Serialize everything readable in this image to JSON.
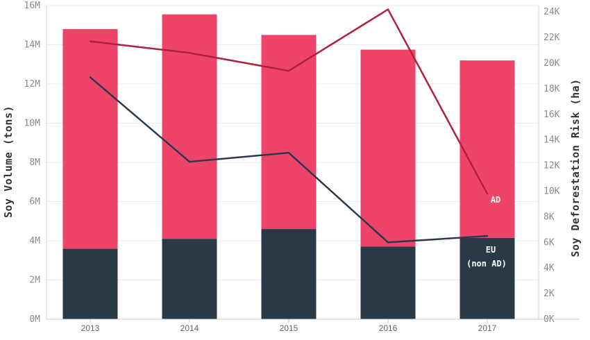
{
  "chart_data": {
    "type": "bar",
    "categories": [
      "2013",
      "2014",
      "2015",
      "2016",
      "2017"
    ],
    "bar_series": [
      {
        "name": "EU (non AD)",
        "values": [
          3600000,
          4100000,
          4600000,
          3700000,
          4150000
        ],
        "color": "#2a3a44"
      },
      {
        "name": "AD",
        "values": [
          11200000,
          11450000,
          9900000,
          10050000,
          9050000
        ],
        "color": "#ee4469"
      }
    ],
    "line_series": [
      {
        "name": "AD",
        "values": [
          21700,
          20800,
          19400,
          24200,
          9800
        ],
        "color": "#b0203c"
      },
      {
        "name": "EU (non AD)",
        "values": [
          18900,
          12300,
          13000,
          6000,
          6500
        ],
        "color": "#2a3a4d"
      }
    ],
    "ylabel_left": "Soy Volume (tons)",
    "ylabel_right": "Soy Deforestation Risk (ha)",
    "ylim_left": [
      0,
      16000000
    ],
    "ylim_right": [
      0,
      24500
    ],
    "yticks_left": [
      "0M",
      "2M",
      "4M",
      "6M",
      "8M",
      "10M",
      "12M",
      "14M",
      "16M"
    ],
    "yticks_right": [
      "0K",
      "2K",
      "4K",
      "6K",
      "8K",
      "10K",
      "12K",
      "14K",
      "16K",
      "18K",
      "20K",
      "22K",
      "24K"
    ],
    "labels": {
      "ad": "AD",
      "eu_line1": "EU",
      "eu_line2": "(non AD)"
    },
    "grid": true
  }
}
